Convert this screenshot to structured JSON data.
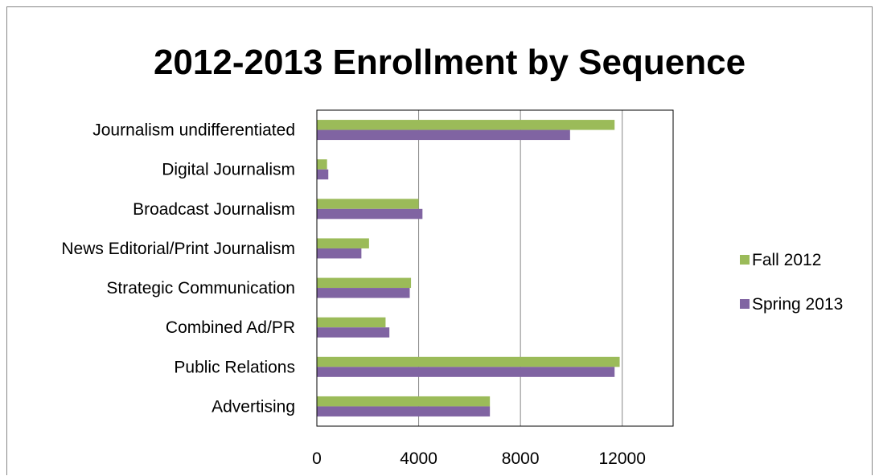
{
  "chart_data": {
    "type": "bar",
    "orientation": "horizontal",
    "title": "2012-2013 Enrollment by Sequence",
    "categories": [
      "Advertising",
      "Public Relations",
      "Combined Ad/PR",
      "Strategic Communication",
      "News Editorial/Print Journalism",
      "Broadcast Journalism",
      "Digital Journalism",
      "Journalism undifferentiated"
    ],
    "series": [
      {
        "name": "Fall 2012",
        "color": "#9BBB59",
        "values": [
          6800,
          11900,
          2700,
          3700,
          2050,
          4000,
          400,
          11700
        ]
      },
      {
        "name": "Spring 2013",
        "color": "#8064A2",
        "values": [
          6800,
          11700,
          2850,
          3650,
          1750,
          4150,
          450,
          9950
        ]
      }
    ],
    "xlim": [
      0,
      14000
    ],
    "xticks": [
      "0",
      "4000",
      "8000",
      "12000"
    ],
    "grid": true,
    "legend_position": "right"
  }
}
